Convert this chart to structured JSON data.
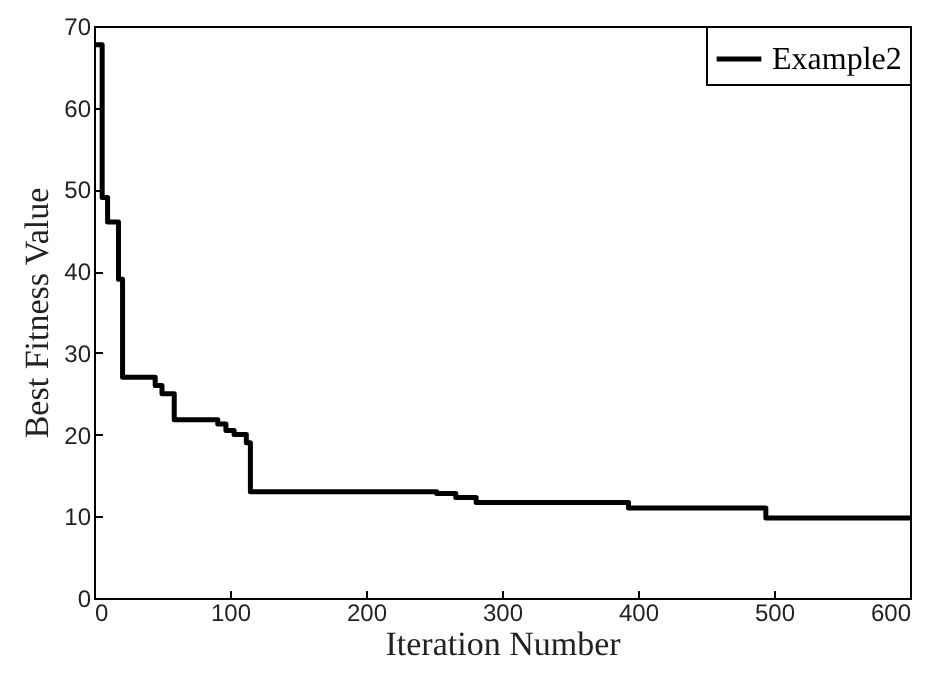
{
  "chart_data": {
    "type": "step",
    "xlabel": "Iteration Number",
    "ylabel": "Best Fitness Value",
    "xlim": [
      0,
      600
    ],
    "xticks": [
      0,
      100,
      200,
      300,
      400,
      500,
      600
    ],
    "ylim": [
      0,
      70
    ],
    "yticks": [
      0,
      10,
      20,
      30,
      40,
      50,
      60,
      70
    ],
    "legend": "top right",
    "grid": false,
    "line_style": "solid",
    "series": [
      {
        "name": "Example2",
        "color": "#000000",
        "x": [
          0,
          6,
          10,
          18,
          21,
          45,
          50,
          59,
          91,
          97,
          103,
          112,
          115,
          252,
          266,
          281,
          393,
          494,
          600
        ],
        "values": [
          67.7,
          49,
          46,
          39,
          27,
          26,
          25,
          21.8,
          21.3,
          20.5,
          20,
          19,
          13,
          12.8,
          12.3,
          11.7,
          11,
          9.8,
          9.8
        ]
      }
    ]
  }
}
